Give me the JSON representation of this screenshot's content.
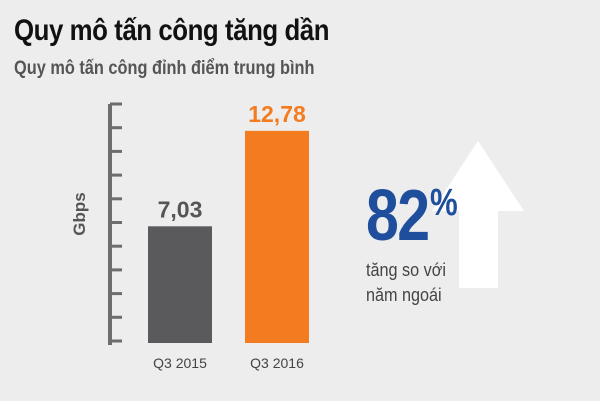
{
  "chart_data": {
    "type": "bar",
    "title": "Quy mô tấn công tăng dần",
    "subtitle": "Quy mô tấn công đỉnh điểm trung bình",
    "ylabel": "Gbps",
    "xlabel": "",
    "categories": [
      "Q3 2015",
      "Q3 2016"
    ],
    "values": [
      7.03,
      12.78
    ],
    "value_labels": [
      "7,03",
      "12,78"
    ],
    "ylim": [
      0,
      15
    ],
    "grid": false,
    "bar_colors": [
      "#5a5a5c",
      "#f47c20"
    ],
    "value_label_colors": [
      "#555555",
      "#f47c20"
    ]
  },
  "callout": {
    "value": "82",
    "unit": "%",
    "line1": "tăng so với",
    "line2": "năm ngoái",
    "color": "#1f4e9c",
    "arrow_color": "#ffffff"
  }
}
